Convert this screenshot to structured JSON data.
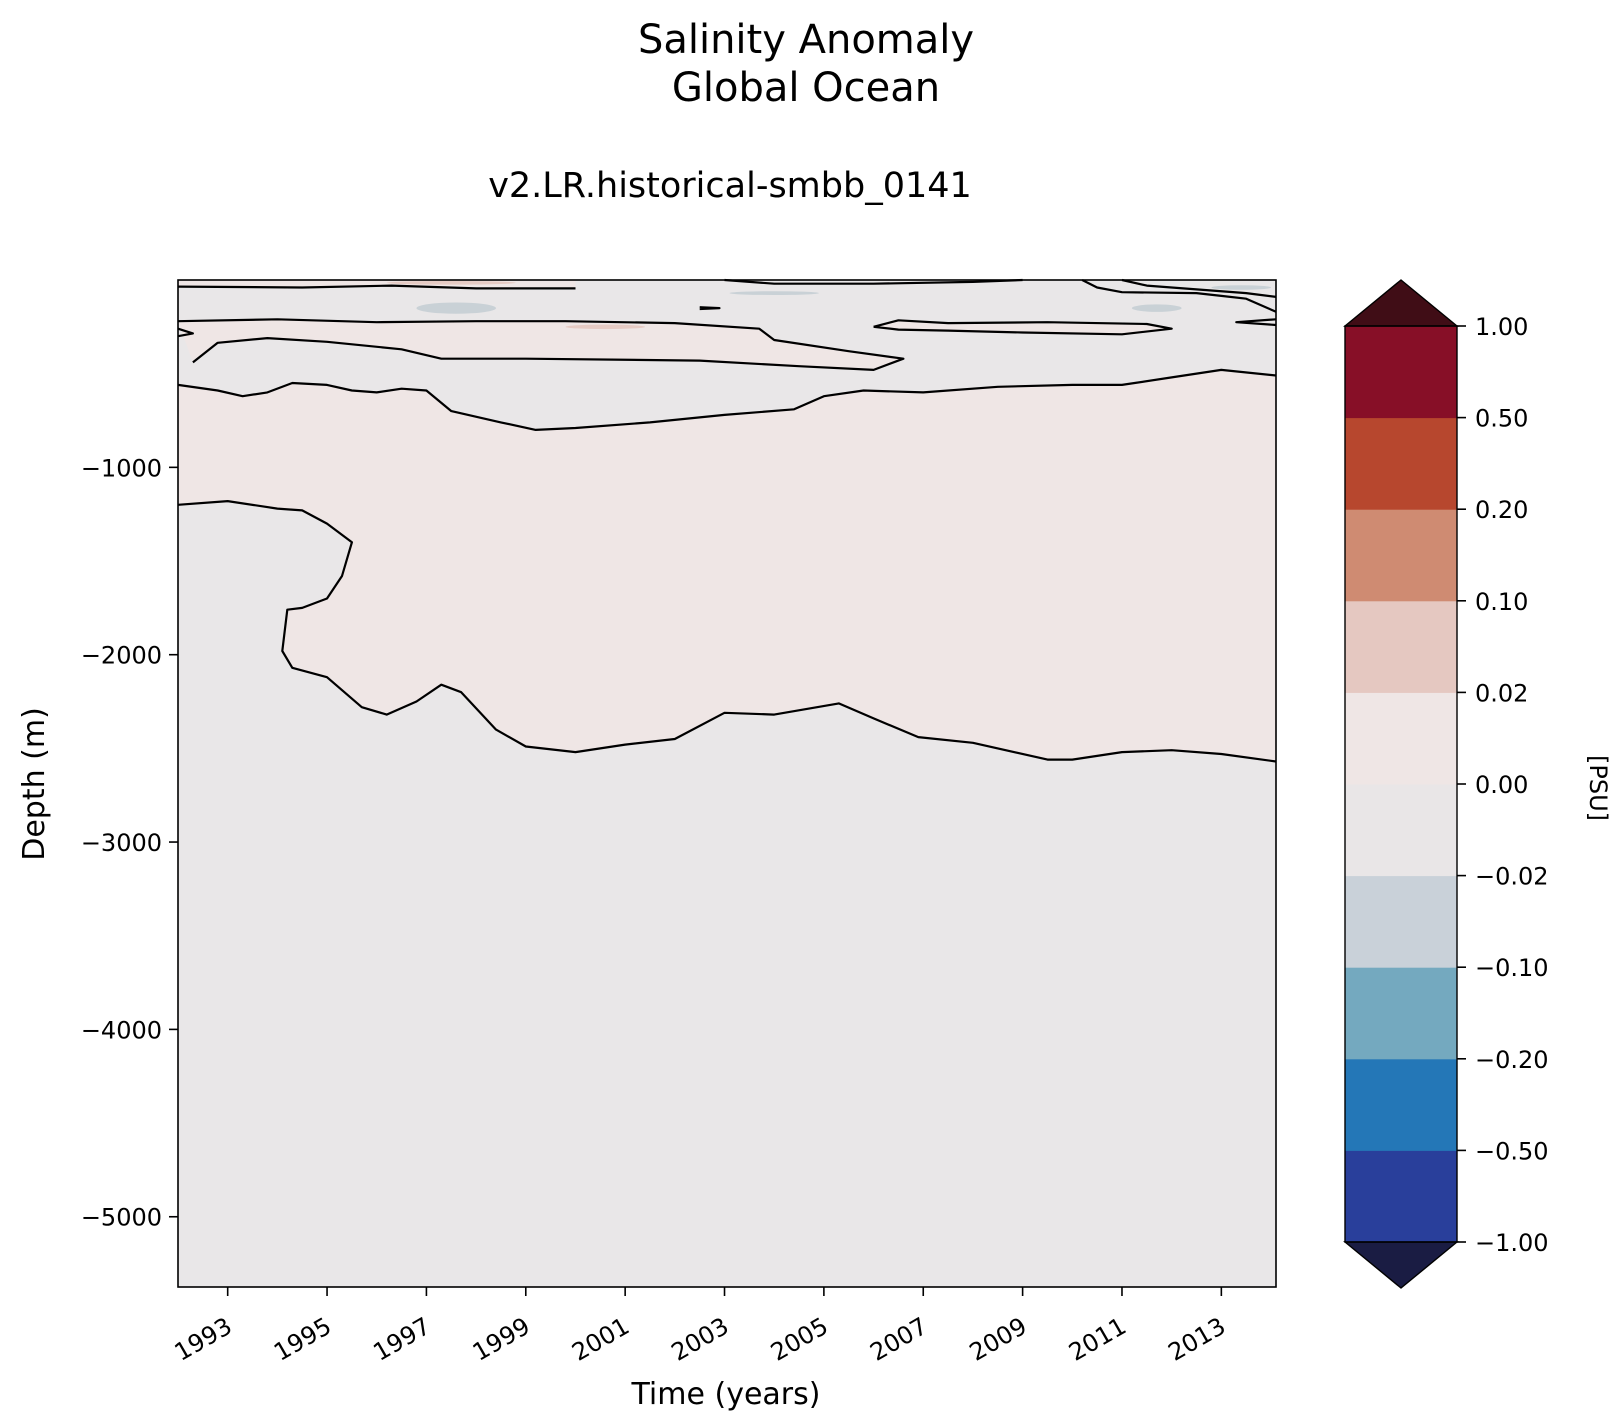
{
  "chart_data": {
    "type": "heatmap",
    "title": "Salinity Anomaly",
    "subtitle": "Global Ocean",
    "run_name": "v2.LR.historical-smbb_0141",
    "xlabel": "Time (years)",
    "ylabel": "Depth (m)",
    "x_ticks": [
      "1993",
      "1995",
      "1997",
      "1999",
      "2001",
      "2003",
      "2005",
      "2007",
      "2009",
      "2011",
      "2013"
    ],
    "xlim": [
      1992.0,
      2014.1
    ],
    "y_ticks": [
      -1000,
      -2000,
      -3000,
      -4000,
      -5000
    ],
    "y_tick_labels": [
      "−1000",
      "−2000",
      "−3000",
      "−4000",
      "−5000"
    ],
    "ylim": [
      -5375,
      0
    ],
    "colorbar": {
      "label": "[PSU]",
      "levels": [
        -1.0,
        -0.5,
        -0.2,
        -0.1,
        -0.02,
        0.0,
        0.02,
        0.1,
        0.2,
        0.5,
        1.0
      ],
      "tick_labels": [
        "1.00",
        "0.50",
        "0.20",
        "0.10",
        "0.02",
        "0.00",
        "−0.02",
        "−0.10",
        "−0.20",
        "−0.50",
        "−1.00"
      ],
      "colors": [
        "#293f9b",
        "#2477b7",
        "#74a9bf",
        "#c9d1d9",
        "#e9e6e7",
        "#efe6e5",
        "#e5c8c1",
        "#cf8b72",
        "#b7472e",
        "#870f27"
      ],
      "over_color": "#400d16",
      "under_color": "#1a1c43",
      "extend": "both"
    },
    "field_colors": {
      "near_zero_negative": "#e9e7e8",
      "near_zero_positive": "#efe6e5",
      "slightly_negative_patch": "#c9d1d6",
      "slightly_positive_patch": "#e6cbc4"
    },
    "contour_lines": [
      {
        "level": 0.0,
        "points": [
          [
            1992.0,
            -1200
          ],
          [
            1993.0,
            -1180
          ],
          [
            1994.0,
            -1220
          ],
          [
            1994.5,
            -1230
          ],
          [
            1995.0,
            -1300
          ],
          [
            1995.5,
            -1400
          ],
          [
            1995.3,
            -1580
          ],
          [
            1995.0,
            -1700
          ],
          [
            1994.5,
            -1750
          ],
          [
            1994.2,
            -1760
          ],
          [
            1994.1,
            -1980
          ],
          [
            1994.3,
            -2070
          ],
          [
            1995.0,
            -2120
          ],
          [
            1995.7,
            -2280
          ],
          [
            1996.2,
            -2320
          ],
          [
            1996.8,
            -2250
          ],
          [
            1997.3,
            -2160
          ],
          [
            1997.7,
            -2200
          ],
          [
            1998.4,
            -2400
          ],
          [
            1999.0,
            -2490
          ],
          [
            2000.0,
            -2520
          ],
          [
            2001.0,
            -2480
          ],
          [
            2002.0,
            -2450
          ],
          [
            2003.0,
            -2310
          ],
          [
            2004.0,
            -2320
          ],
          [
            2005.3,
            -2260
          ],
          [
            2006.0,
            -2340
          ],
          [
            2006.9,
            -2440
          ],
          [
            2008.0,
            -2470
          ],
          [
            2009.5,
            -2560
          ],
          [
            2010.0,
            -2560
          ],
          [
            2011.0,
            -2520
          ],
          [
            2012.0,
            -2510
          ],
          [
            2013.0,
            -2530
          ],
          [
            2014.1,
            -2570
          ]
        ]
      },
      {
        "level": 0.0,
        "points": [
          [
            1992.0,
            -560
          ],
          [
            1992.8,
            -590
          ],
          [
            1993.3,
            -620
          ],
          [
            1993.8,
            -600
          ],
          [
            1994.3,
            -550
          ],
          [
            1995.0,
            -560
          ],
          [
            1995.5,
            -590
          ],
          [
            1996.0,
            -600
          ],
          [
            1996.5,
            -580
          ],
          [
            1997.0,
            -590
          ],
          [
            1997.5,
            -700
          ],
          [
            1998.5,
            -760
          ],
          [
            1999.2,
            -800
          ],
          [
            2000.0,
            -790
          ],
          [
            2001.5,
            -760
          ],
          [
            2003.0,
            -720
          ],
          [
            2004.4,
            -690
          ],
          [
            2005.0,
            -620
          ],
          [
            2005.8,
            -590
          ],
          [
            2007.0,
            -600
          ],
          [
            2008.5,
            -570
          ],
          [
            2010.0,
            -560
          ],
          [
            2011.0,
            -560
          ],
          [
            2012.0,
            -520
          ],
          [
            2013.0,
            -480
          ],
          [
            2014.1,
            -510
          ]
        ]
      },
      {
        "level": 0.0,
        "points": [
          [
            1992.3,
            -440
          ],
          [
            1992.8,
            -335
          ],
          [
            1993.8,
            -310
          ],
          [
            1995.0,
            -330
          ],
          [
            1996.5,
            -370
          ],
          [
            1997.3,
            -420
          ],
          [
            1999.0,
            -420
          ],
          [
            2002.5,
            -430
          ],
          [
            2004.5,
            -460
          ],
          [
            2006.0,
            -480
          ],
          [
            2006.6,
            -420
          ],
          [
            2005.5,
            -380
          ],
          [
            2004.0,
            -320
          ],
          [
            2003.7,
            -260
          ],
          [
            2002.0,
            -230
          ],
          [
            1999.8,
            -220
          ],
          [
            1998.0,
            -220
          ],
          [
            1996.0,
            -225
          ],
          [
            1994.0,
            -210
          ],
          [
            1992.0,
            -220
          ]
        ]
      },
      {
        "level": 0.0,
        "points": [
          [
            1992.0,
            -260
          ],
          [
            1992.3,
            -285
          ],
          [
            1992.0,
            -300
          ]
        ]
      },
      {
        "level": 0.0,
        "points": [
          [
            1992.0,
            -35
          ],
          [
            1994.5,
            -40
          ],
          [
            1996.3,
            -30
          ],
          [
            1998.0,
            -45
          ],
          [
            2000.0,
            -45
          ]
        ]
      },
      {
        "level": 0.0,
        "points": [
          [
            2003.0,
            0
          ],
          [
            2004.0,
            -20
          ],
          [
            2006.0,
            -20
          ],
          [
            2008.0,
            -10
          ],
          [
            2009.0,
            0
          ]
        ]
      },
      {
        "level": 0.0,
        "points": [
          [
            2006.0,
            -250
          ],
          [
            2006.5,
            -215
          ],
          [
            2007.5,
            -230
          ],
          [
            2009.5,
            -225
          ],
          [
            2011.5,
            -235
          ],
          [
            2012.0,
            -260
          ],
          [
            2011.0,
            -290
          ],
          [
            2009.0,
            -280
          ],
          [
            2007.5,
            -270
          ],
          [
            2006.5,
            -265
          ],
          [
            2006.0,
            -250
          ]
        ]
      },
      {
        "level": 0.0,
        "points": [
          [
            2010.2,
            0
          ],
          [
            2010.5,
            -40
          ],
          [
            2011.0,
            -65
          ],
          [
            2012.5,
            -70
          ],
          [
            2013.0,
            -85
          ],
          [
            2013.5,
            -100
          ],
          [
            2014.1,
            -170
          ]
        ]
      },
      {
        "level": 0.0,
        "points": [
          [
            2011.0,
            0
          ],
          [
            2011.5,
            -30
          ],
          [
            2012.5,
            -50
          ],
          [
            2013.5,
            -70
          ],
          [
            2014.1,
            -90
          ]
        ]
      },
      {
        "level": 0.0,
        "points": [
          [
            2014.1,
            -210
          ],
          [
            2013.3,
            -225
          ],
          [
            2014.1,
            -240
          ]
        ]
      },
      {
        "level": 0.0,
        "points": [
          [
            2002.5,
            -145
          ],
          [
            2002.9,
            -150
          ],
          [
            2002.5,
            -155
          ]
        ]
      }
    ]
  }
}
